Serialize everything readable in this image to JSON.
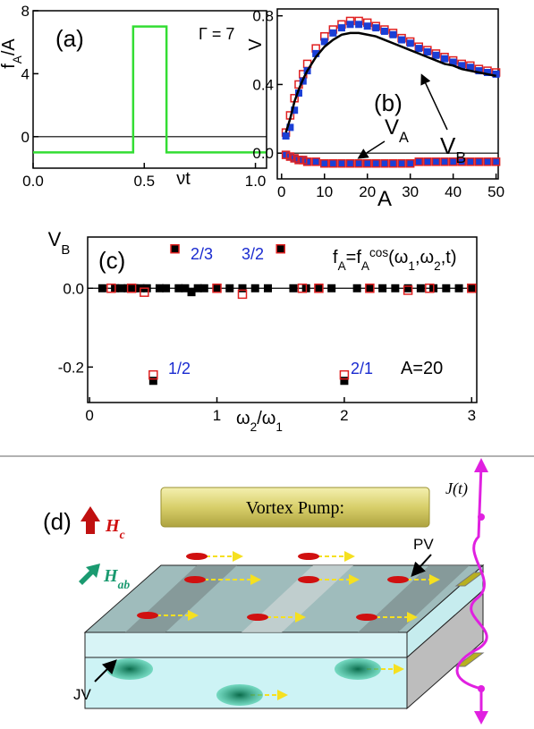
{
  "chart_data": [
    {
      "type": "line",
      "panel": "(a)",
      "ylabel": [
        {
          "text": "f"
        },
        {
          "text": "A",
          "shift": "sub"
        },
        {
          "text": "/A"
        }
      ],
      "xlabel": [
        {
          "text": "νt"
        }
      ],
      "annotations": [
        [
          {
            "text": "Γ = 7"
          }
        ]
      ],
      "xlim": [
        0,
        1.05
      ],
      "ylim": [
        -2,
        8
      ],
      "xticks": [
        {
          "value": 0,
          "label": "0.0"
        },
        {
          "value": 0.5,
          "label": "0.5"
        },
        {
          "value": 1,
          "label": "1.0"
        }
      ],
      "yticks": [
        0,
        4,
        8
      ],
      "zero_line": true,
      "series": [
        {
          "color": "#33dd33",
          "marker": "none",
          "x": [
            0,
            0.45,
            0.45,
            0.6,
            0.6,
            1.05
          ],
          "values": [
            -1,
            -1,
            7,
            7,
            -1,
            -1
          ]
        }
      ]
    },
    {
      "type": "scatter",
      "panel": "(b)",
      "ylabel": [
        {
          "text": "V"
        }
      ],
      "xlabel": [
        {
          "text": "A"
        }
      ],
      "annotations": [
        [
          {
            "text": "V"
          },
          {
            "text": "B",
            "shift": "sub"
          }
        ],
        [
          {
            "text": "V"
          },
          {
            "text": "A",
            "shift": "sub"
          }
        ]
      ],
      "xlim": [
        -1,
        50.5
      ],
      "ylim": [
        -0.15,
        0.84
      ],
      "xticks": [
        0,
        10,
        20,
        30,
        40,
        50
      ],
      "yticks": [
        {
          "value": 0,
          "label": "0.0"
        },
        {
          "value": 0.4,
          "label": "0.4"
        },
        {
          "value": 0.8,
          "label": "0.8"
        }
      ],
      "zero_line": true,
      "x": [
        1,
        2,
        3,
        4,
        5,
        6,
        8,
        10,
        12,
        14,
        16,
        18,
        20,
        22,
        24,
        26,
        28,
        30,
        32,
        34,
        36,
        38,
        40,
        42,
        44,
        46,
        48,
        50
      ],
      "series": [
        {
          "color": "#e02020",
          "marker": "open-square",
          "values": [
            0.12,
            0.22,
            0.32,
            0.4,
            0.46,
            0.52,
            0.61,
            0.68,
            0.72,
            0.75,
            0.77,
            0.77,
            0.76,
            0.74,
            0.72,
            0.7,
            0.67,
            0.65,
            0.62,
            0.6,
            0.58,
            0.56,
            0.54,
            0.52,
            0.51,
            0.49,
            0.48,
            0.47
          ]
        },
        {
          "color": "#1a3fd6",
          "marker": "filled-square",
          "values": [
            0.1,
            0.15,
            0.25,
            0.35,
            0.42,
            0.48,
            0.58,
            0.65,
            0.7,
            0.73,
            0.75,
            0.75,
            0.74,
            0.73,
            0.71,
            0.69,
            0.66,
            0.64,
            0.61,
            0.59,
            0.57,
            0.55,
            0.53,
            0.51,
            0.5,
            0.48,
            0.47,
            0.46
          ]
        },
        {
          "color": "#000000",
          "marker": "none",
          "values": [
            0.12,
            0.2,
            0.3,
            0.37,
            0.43,
            0.48,
            0.56,
            0.62,
            0.66,
            0.69,
            0.7,
            0.7,
            0.69,
            0.68,
            0.66,
            0.64,
            0.62,
            0.6,
            0.58,
            0.56,
            0.54,
            0.52,
            0.51,
            0.49,
            0.48,
            0.47,
            0.46,
            0.45
          ]
        },
        {
          "color": "#1a3fd6",
          "marker": "filled-square",
          "values": [
            -0.01,
            -0.02,
            -0.03,
            -0.04,
            -0.04,
            -0.05,
            -0.05,
            -0.06,
            -0.06,
            -0.06,
            -0.06,
            -0.06,
            -0.06,
            -0.06,
            -0.06,
            -0.06,
            -0.06,
            -0.06,
            -0.05,
            -0.05,
            -0.05,
            -0.05,
            -0.05,
            -0.05,
            -0.05,
            -0.05,
            -0.05,
            -0.05
          ]
        },
        {
          "color": "#e02020",
          "marker": "open-square",
          "values": [
            -0.01,
            -0.02,
            -0.03,
            -0.04,
            -0.04,
            -0.05,
            -0.05,
            -0.06,
            -0.06,
            -0.06,
            -0.06,
            -0.06,
            -0.06,
            -0.06,
            -0.06,
            -0.06,
            -0.06,
            -0.06,
            -0.05,
            -0.05,
            -0.05,
            -0.05,
            -0.05,
            -0.05,
            -0.05,
            -0.05,
            -0.05,
            -0.05
          ]
        }
      ]
    },
    {
      "type": "scatter",
      "panel": "(c)",
      "ylabel": [
        {
          "text": "V"
        },
        {
          "text": "B",
          "shift": "sub"
        }
      ],
      "xlabel": [
        {
          "text": "ω"
        },
        {
          "text": "2",
          "shift": "sub"
        },
        {
          "text": "/ω"
        },
        {
          "text": "1",
          "shift": "sub"
        }
      ],
      "annotations": [
        [
          {
            "text": "2/3"
          }
        ],
        [
          {
            "text": "3/2"
          }
        ],
        [
          {
            "text": "1/2"
          }
        ],
        [
          {
            "text": "2/1"
          }
        ],
        [
          {
            "text": "f"
          },
          {
            "text": "A",
            "shift": "sub"
          },
          {
            "text": "=f"
          },
          {
            "text": "A",
            "shift": "sub"
          },
          {
            "text": "cos",
            "shift": "super"
          },
          {
            "text": "(ω"
          },
          {
            "text": "1",
            "shift": "sub"
          },
          {
            "text": ",ω"
          },
          {
            "text": "2",
            "shift": "sub"
          },
          {
            "text": ",t)"
          }
        ],
        [
          {
            "text": "A=20"
          }
        ]
      ],
      "xlim": [
        -0.015,
        3.04
      ],
      "ylim": [
        -0.29,
        0.13
      ],
      "xticks": [
        0,
        1,
        2,
        3
      ],
      "yticks": [
        {
          "value": 0,
          "label": "0.0"
        },
        {
          "value": -0.2,
          "label": "-0.2"
        }
      ],
      "zero_line": true,
      "series": [
        {
          "color": "#000000",
          "marker": "filled-square",
          "x": [
            0.1,
            0.2,
            0.25,
            0.3,
            0.35,
            0.4,
            0.45,
            0.5,
            0.55,
            0.6,
            0.67,
            0.7,
            0.75,
            0.8,
            0.85,
            0.9,
            1.0,
            1.1,
            1.2,
            1.3,
            1.4,
            1.5,
            1.6,
            1.7,
            1.8,
            1.9,
            2.0,
            2.1,
            2.2,
            2.3,
            2.4,
            2.5,
            2.6,
            2.7,
            2.8,
            2.9,
            3.0
          ],
          "values": [
            0,
            0,
            0,
            0,
            0,
            0,
            0,
            -0.235,
            0,
            0,
            0.1,
            0,
            0,
            -0.01,
            0,
            0,
            0,
            0,
            0,
            0,
            0,
            0.1,
            0,
            0,
            0,
            0,
            -0.235,
            0,
            0,
            0,
            0,
            0,
            0,
            0,
            0,
            0,
            0
          ]
        },
        {
          "color": "#e02020",
          "marker": "open-square",
          "x": [
            0.17,
            0.33,
            0.43,
            0.5,
            0.67,
            1.0,
            1.2,
            1.5,
            1.67,
            1.8,
            2.0,
            2.2,
            2.5,
            2.67,
            3.0
          ],
          "values": [
            0,
            0,
            -0.01,
            -0.22,
            0.1,
            0,
            -0.015,
            0.1,
            0,
            0,
            -0.22,
            0,
            -0.005,
            0,
            0
          ]
        }
      ]
    }
  ],
  "diagram": {
    "label": "(d)",
    "pump": "Vortex Pump:",
    "hc": [
      {
        "text": "H"
      },
      {
        "text": "c",
        "shift": "sub"
      }
    ],
    "hab": [
      {
        "text": "H"
      },
      {
        "text": "ab",
        "shift": "sub"
      }
    ],
    "jt": [
      {
        "text": "J(t)"
      }
    ],
    "pv": "PV",
    "jv": "JV"
  }
}
